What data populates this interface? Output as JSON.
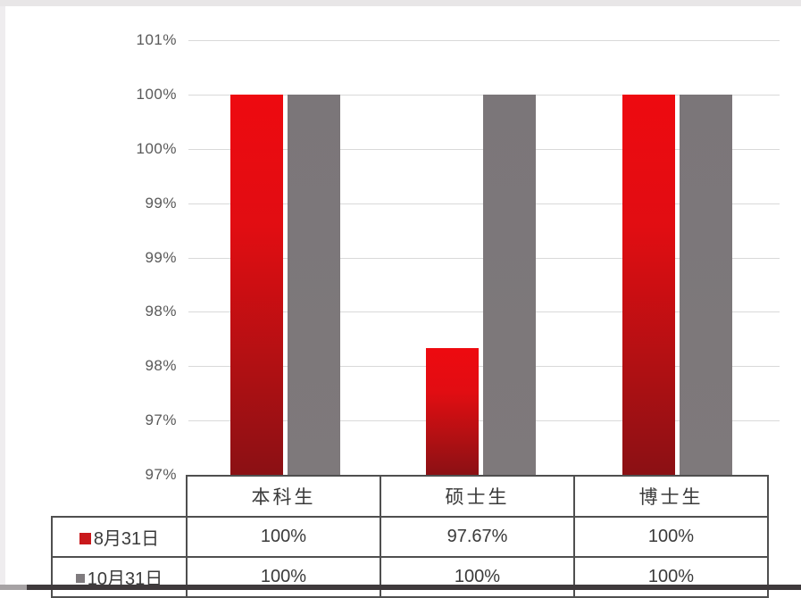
{
  "window": {
    "background": "#ffffff",
    "top_band_color": "#e8e6e7",
    "bottom_strip_color": "#3f3a3c"
  },
  "colors": {
    "series1_red_top": "#ee0a10",
    "series1_red_bottom": "#8b1014",
    "series2_gray": "#7b7679",
    "axis_label": "#595959",
    "table_border": "#4f4f4f",
    "gridline": "#d9d9d9"
  },
  "chart_data": {
    "type": "bar",
    "title": "",
    "categories": [
      "本科生",
      "硕士生",
      "博士生"
    ],
    "series": [
      {
        "name": "8月31日",
        "values": [
          100,
          97.67,
          100
        ],
        "display": [
          "100%",
          "97.67%",
          "100%"
        ],
        "legend_color": "#c9191c"
      },
      {
        "name": "10月31日",
        "values": [
          100,
          100,
          100
        ],
        "display": [
          "100%",
          "100%",
          "100%"
        ],
        "legend_color": "#7f7b7e"
      }
    ],
    "y_axis": {
      "min": 96.5,
      "max": 100.5,
      "step": 0.5,
      "tick_labels_top_to_bottom": [
        "101%",
        "100%",
        "100%",
        "99%",
        "99%",
        "98%",
        "98%",
        "97%",
        "97%"
      ]
    },
    "grid": true,
    "legend_position": "data-table-left-column",
    "has_data_table": true
  }
}
